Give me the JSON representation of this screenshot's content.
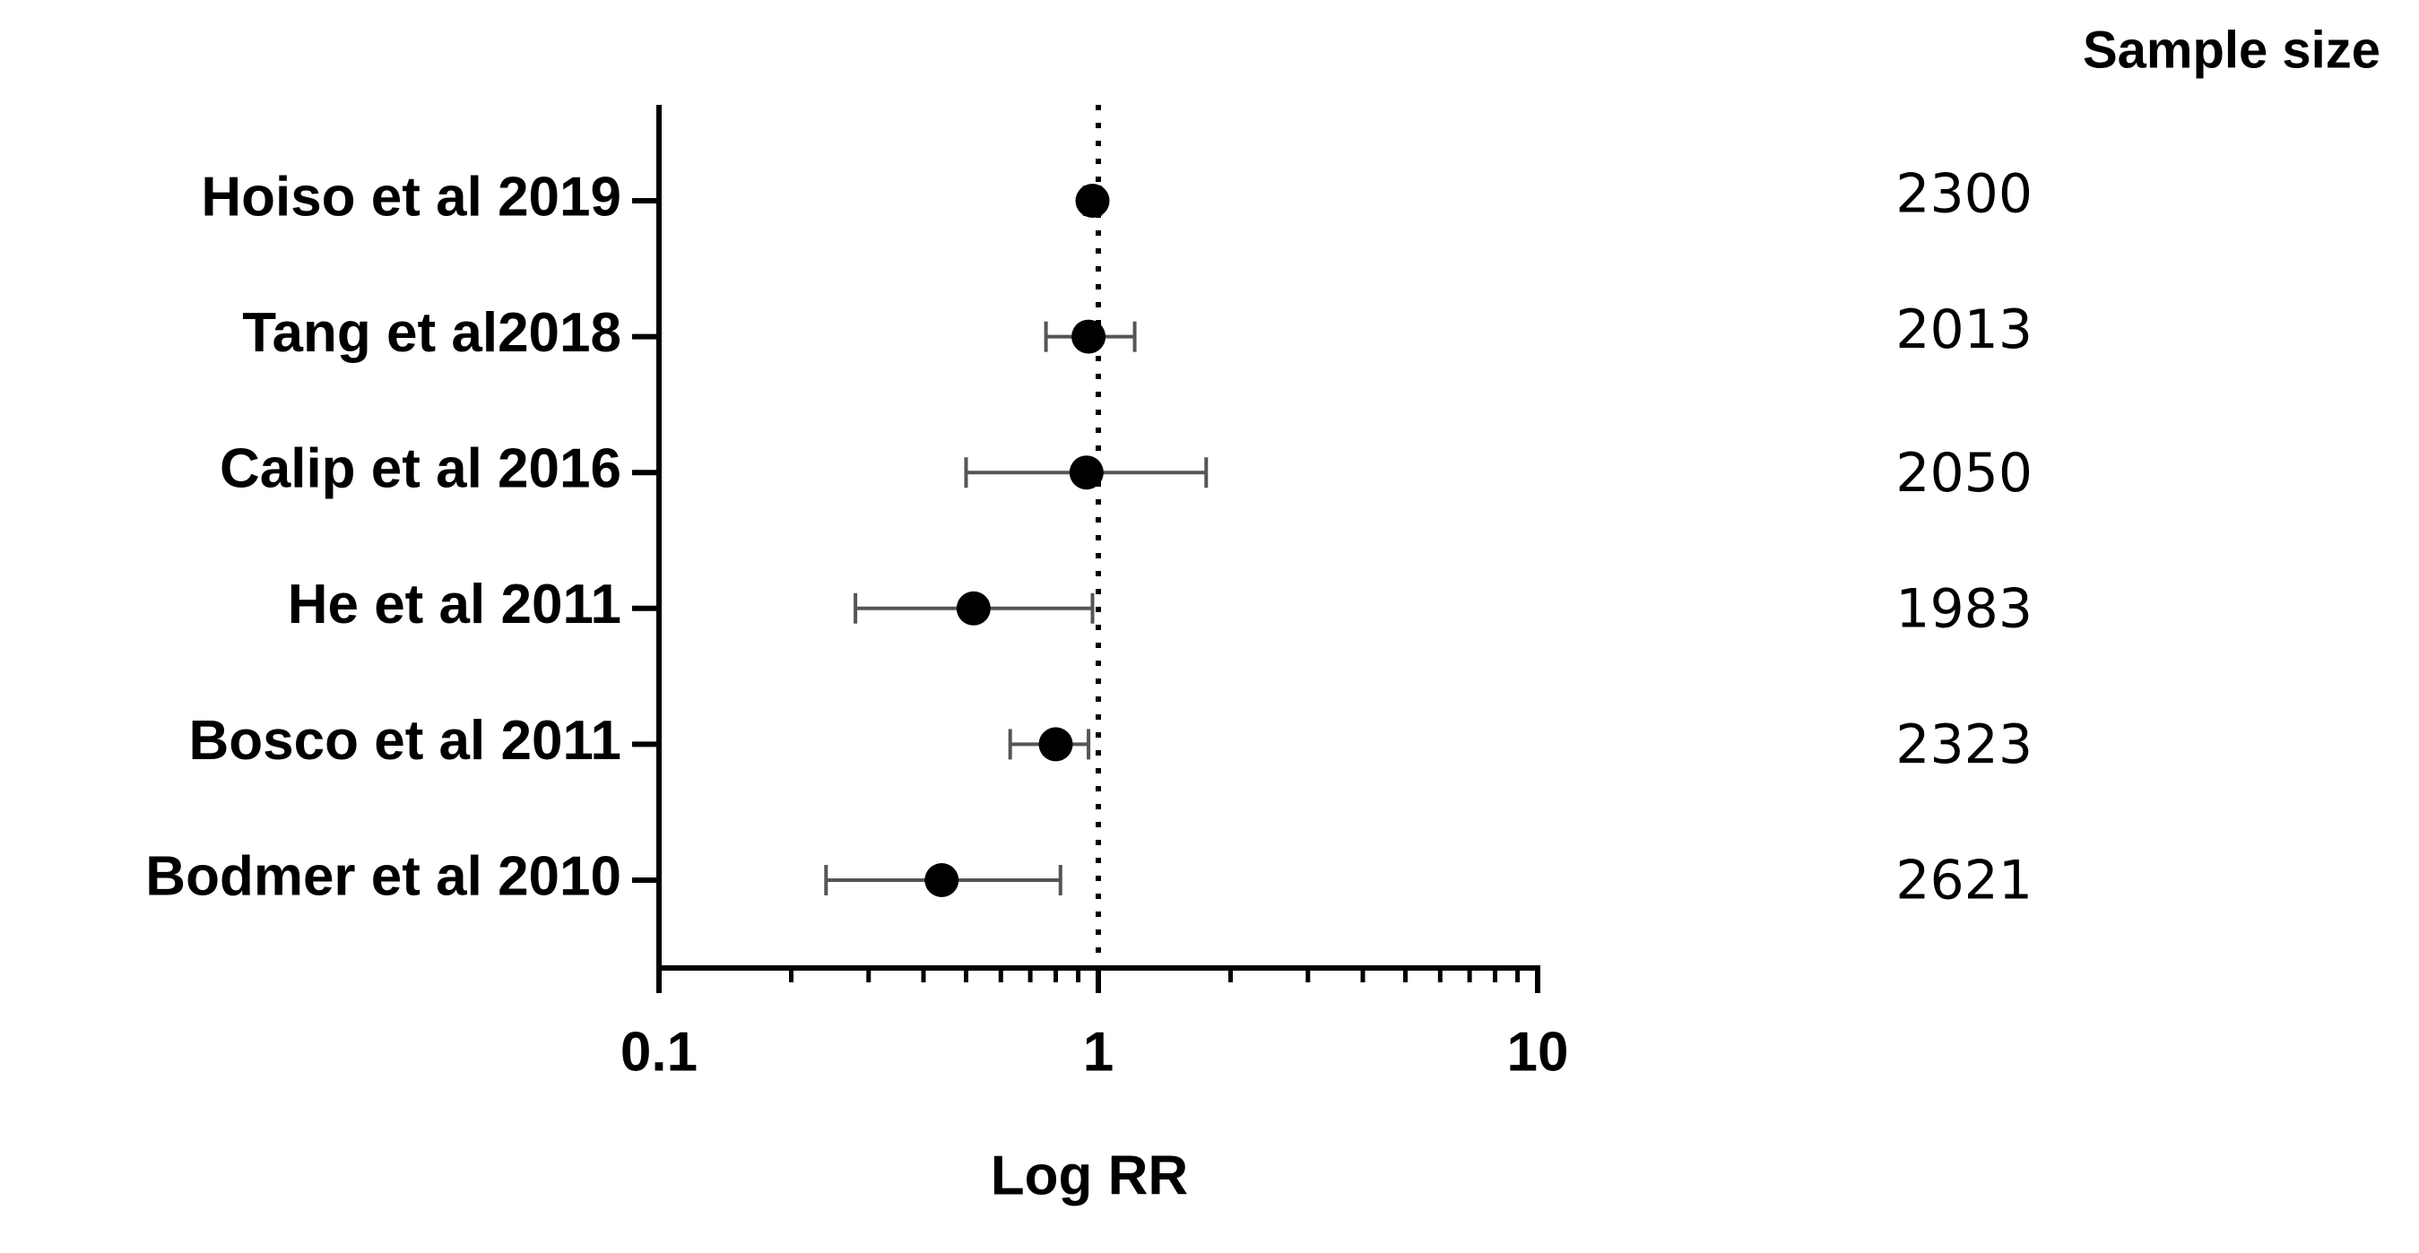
{
  "chart_data": {
    "type": "forest",
    "categories": [
      "Hoiso et al 2019",
      "Tang et al2018",
      "Calip et al 2016",
      "He et al 2011",
      "Bosco et al 2011",
      "Bodmer et al 2010"
    ],
    "values": [
      0.97,
      0.95,
      0.94,
      0.52,
      0.8,
      0.44
    ],
    "lower": [
      0.93,
      0.76,
      0.5,
      0.28,
      0.63,
      0.24
    ],
    "upper": [
      1.01,
      1.21,
      1.76,
      0.97,
      0.95,
      0.82
    ],
    "color": "#000000",
    "whisker_color": "#555555",
    "x_label": "Log RR",
    "xlim": [
      0.1,
      10
    ],
    "xticks": [
      0.1,
      1,
      10
    ],
    "minor_xticks": [
      0.2,
      0.3,
      0.4,
      0.5,
      0.6,
      0.7,
      0.8,
      0.9,
      2,
      3,
      4,
      5,
      6,
      7,
      8,
      9
    ],
    "x_log_scale": true,
    "reference_line": 1,
    "sample_size": {
      "title": "Sample size",
      "values": [
        2300,
        2013,
        2050,
        1983,
        2323,
        2621
      ]
    }
  }
}
